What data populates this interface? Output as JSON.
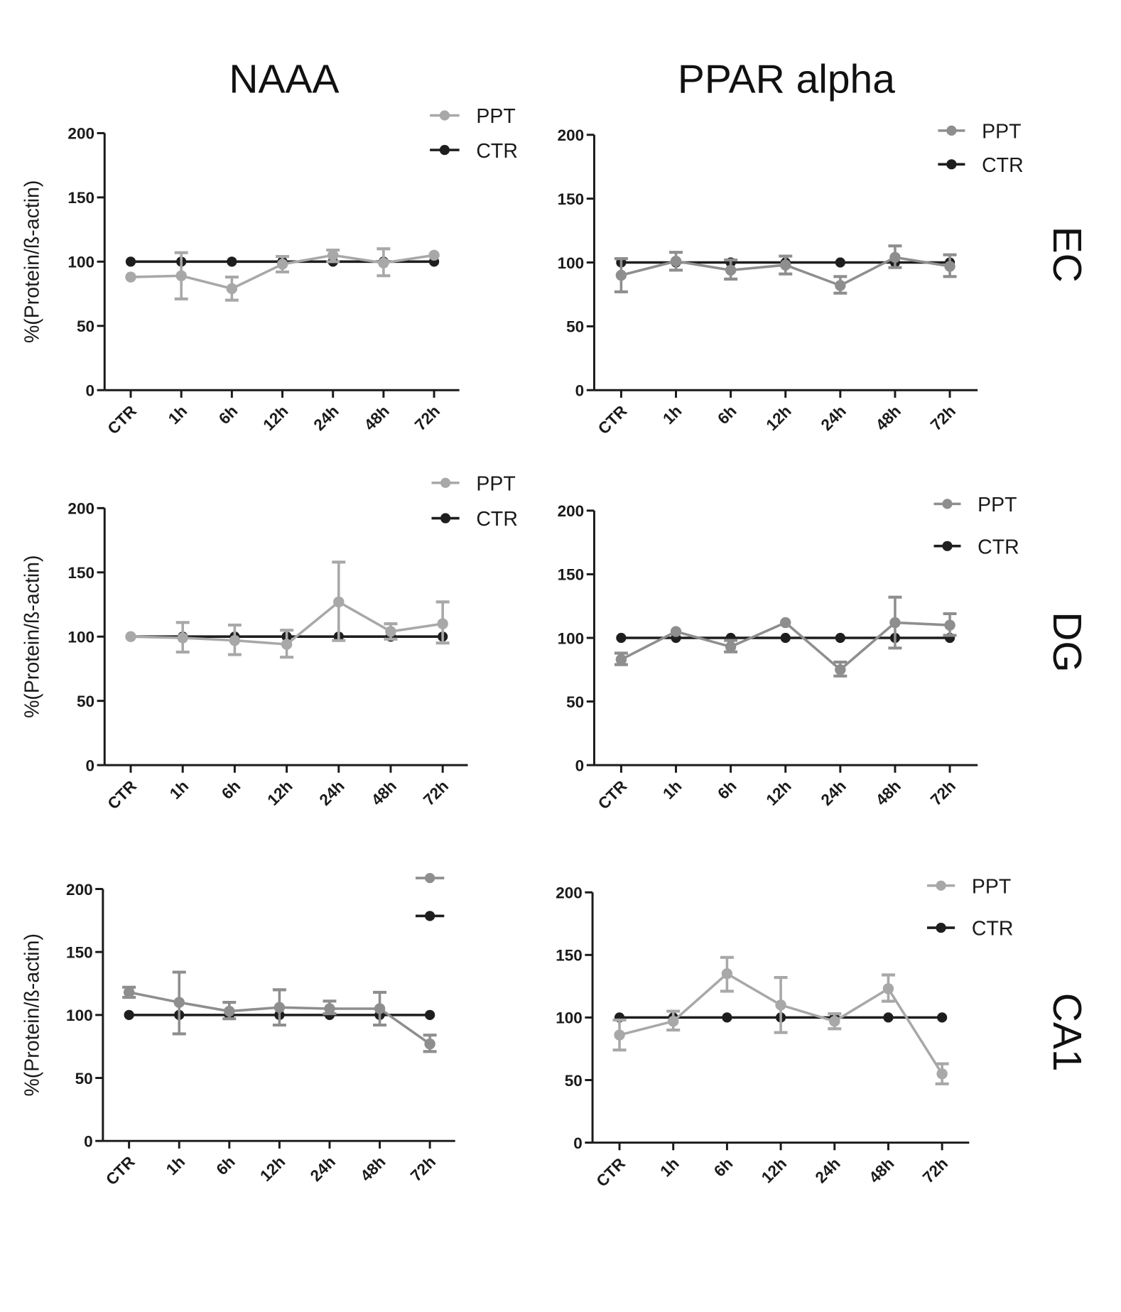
{
  "column_titles": [
    "NAAA",
    "PPAR alpha"
  ],
  "row_labels": [
    "EC",
    "DG",
    "CA1"
  ],
  "colors": {
    "ctr": "#1e1e1e",
    "ppt_light": "#a8a8a8",
    "ppt_mid": "#8e8e8e"
  },
  "chart_data": [
    {
      "type": "line",
      "column": "NAAA",
      "row": "EC",
      "ylabel": "%(Protein/ß-actin)",
      "ylim": [
        0,
        200
      ],
      "yticks": [
        0,
        50,
        100,
        150,
        200
      ],
      "categories": [
        "CTR",
        "1h",
        "6h",
        "12h",
        "24h",
        "48h",
        "72h"
      ],
      "legend": [
        "PPT",
        "CTR"
      ],
      "ppt_color": "#a8a8a8",
      "series": [
        {
          "name": "PPT",
          "values": [
            88,
            89,
            79,
            98,
            105,
            99,
            105
          ],
          "error_low": [
            88,
            71,
            70,
            92,
            100,
            89,
            105
          ],
          "error_high": [
            88,
            107,
            88,
            104,
            109,
            110,
            105
          ]
        },
        {
          "name": "CTR",
          "values": [
            100,
            100,
            100,
            100,
            100,
            100,
            100
          ]
        }
      ]
    },
    {
      "type": "line",
      "column": "PPAR alpha",
      "row": "EC",
      "ylabel": "",
      "ylim": [
        0,
        200
      ],
      "yticks": [
        0,
        50,
        100,
        150,
        200
      ],
      "categories": [
        "CTR",
        "1h",
        "6h",
        "12h",
        "24h",
        "48h",
        "72h"
      ],
      "legend": [
        "PPT",
        "CTR"
      ],
      "ppt_color": "#8e8e8e",
      "series": [
        {
          "name": "PPT",
          "values": [
            90,
            101,
            94,
            98,
            82,
            104,
            97
          ],
          "error_low": [
            77,
            94,
            87,
            91,
            76,
            96,
            89
          ],
          "error_high": [
            103,
            108,
            102,
            105,
            89,
            113,
            106
          ]
        },
        {
          "name": "CTR",
          "values": [
            100,
            100,
            100,
            100,
            100,
            100,
            100
          ]
        }
      ]
    },
    {
      "type": "line",
      "column": "NAAA",
      "row": "DG",
      "ylabel": "%(Protein/ß-actin)",
      "ylim": [
        0,
        200
      ],
      "yticks": [
        0,
        50,
        100,
        150,
        200
      ],
      "categories": [
        "CTR",
        "1h",
        "6h",
        "12h",
        "24h",
        "48h",
        "72h"
      ],
      "legend": [
        "PPT",
        "CTR"
      ],
      "ppt_color": "#a8a8a8",
      "series": [
        {
          "name": "PPT",
          "values": [
            100,
            99,
            97,
            94,
            127,
            104,
            110
          ],
          "error_low": [
            100,
            88,
            86,
            84,
            97,
            98,
            95
          ],
          "error_high": [
            100,
            111,
            109,
            105,
            158,
            110,
            127
          ]
        },
        {
          "name": "CTR",
          "values": [
            100,
            100,
            100,
            100,
            100,
            100,
            100
          ]
        }
      ]
    },
    {
      "type": "line",
      "column": "PPAR alpha",
      "row": "DG",
      "ylabel": "",
      "ylim": [
        0,
        200
      ],
      "yticks": [
        0,
        50,
        100,
        150,
        200
      ],
      "categories": [
        "CTR",
        "1h",
        "6h",
        "12h",
        "24h",
        "48h",
        "72h"
      ],
      "legend": [
        "PPT",
        "CTR"
      ],
      "ppt_color": "#8e8e8e",
      "series": [
        {
          "name": "PPT",
          "values": [
            83,
            105,
            93,
            112,
            75,
            112,
            110
          ],
          "error_low": [
            79,
            105,
            89,
            112,
            70,
            92,
            102
          ],
          "error_high": [
            88,
            105,
            98,
            112,
            81,
            132,
            119
          ]
        },
        {
          "name": "CTR",
          "values": [
            100,
            100,
            100,
            100,
            100,
            100,
            100
          ]
        }
      ]
    },
    {
      "type": "line",
      "column": "NAAA",
      "row": "CA1",
      "ylabel": "%(Protein/ß-actin)",
      "ylim": [
        0,
        200
      ],
      "yticks": [
        0,
        50,
        100,
        150,
        200
      ],
      "categories": [
        "CTR",
        "1h",
        "6h",
        "12h",
        "24h",
        "48h",
        "72h"
      ],
      "legend": [
        "",
        ""
      ],
      "ppt_color": "#8e8e8e",
      "series": [
        {
          "name": "PPT",
          "values": [
            118,
            110,
            103,
            106,
            105,
            105,
            77
          ],
          "error_low": [
            114,
            85,
            97,
            92,
            101,
            92,
            71
          ],
          "error_high": [
            122,
            134,
            110,
            120,
            111,
            118,
            84
          ]
        },
        {
          "name": "CTR",
          "values": [
            100,
            100,
            100,
            100,
            100,
            100,
            100
          ]
        }
      ]
    },
    {
      "type": "line",
      "column": "PPAR alpha",
      "row": "CA1",
      "ylabel": "",
      "ylim": [
        0,
        200
      ],
      "yticks": [
        0,
        50,
        100,
        150,
        200
      ],
      "categories": [
        "CTR",
        "1h",
        "6h",
        "12h",
        "24h",
        "48h",
        "72h"
      ],
      "legend": [
        "PPT",
        "CTR"
      ],
      "ppt_color": "#a8a8a8",
      "series": [
        {
          "name": "PPT",
          "values": [
            86,
            97,
            135,
            110,
            97,
            123,
            55
          ],
          "error_low": [
            74,
            90,
            121,
            88,
            91,
            113,
            47
          ],
          "error_high": [
            98,
            105,
            148,
            132,
            103,
            134,
            63
          ]
        },
        {
          "name": "CTR",
          "values": [
            100,
            100,
            100,
            100,
            100,
            100,
            100
          ]
        }
      ]
    }
  ]
}
